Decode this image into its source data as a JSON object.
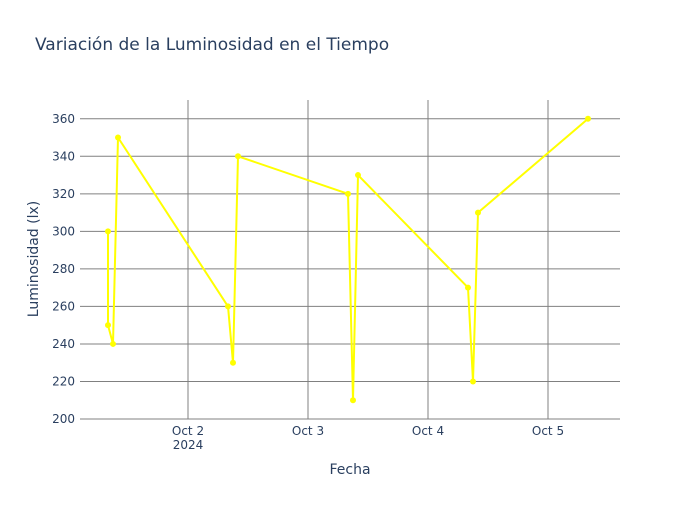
{
  "chart_data": {
    "type": "line",
    "title": "Variación de la Luminosidad en el Tiempo",
    "xlabel": "Fecha",
    "ylabel": "Luminosidad (lx)",
    "ylim": [
      200,
      370
    ],
    "yticks": [
      "200",
      "220",
      "240",
      "260",
      "280",
      "300",
      "320",
      "340",
      "360"
    ],
    "xlim": [
      "2024-10-01 02:24",
      "2024-10-05 14:24"
    ],
    "xticks": [
      {
        "value": "2024-10-02",
        "label": "Oct 2",
        "sublabel": "2024"
      },
      {
        "value": "2024-10-03",
        "label": "Oct 3",
        "sublabel": ""
      },
      {
        "value": "2024-10-04",
        "label": "Oct 4",
        "sublabel": ""
      },
      {
        "value": "2024-10-05",
        "label": "Oct 5",
        "sublabel": ""
      }
    ],
    "grid": true,
    "series": [
      {
        "color": "#ffff00",
        "mode": "lines+markers",
        "x": [
          "2024-10-01 08:00",
          "2024-10-01 08:00",
          "2024-10-01 09:00",
          "2024-10-01 10:00",
          "2024-10-02 08:00",
          "2024-10-02 09:00",
          "2024-10-02 10:00",
          "2024-10-03 08:00",
          "2024-10-03 09:00",
          "2024-10-03 10:00",
          "2024-10-04 08:00",
          "2024-10-04 09:00",
          "2024-10-04 10:00",
          "2024-10-05 08:00"
        ],
        "y": [
          300,
          250,
          240,
          350,
          260,
          230,
          340,
          320,
          210,
          330,
          270,
          220,
          310,
          360
        ]
      }
    ]
  },
  "colors": {
    "grid": "#808080",
    "text": "#2a3f5f",
    "line": "#ffff00",
    "background": "#ffffff"
  }
}
